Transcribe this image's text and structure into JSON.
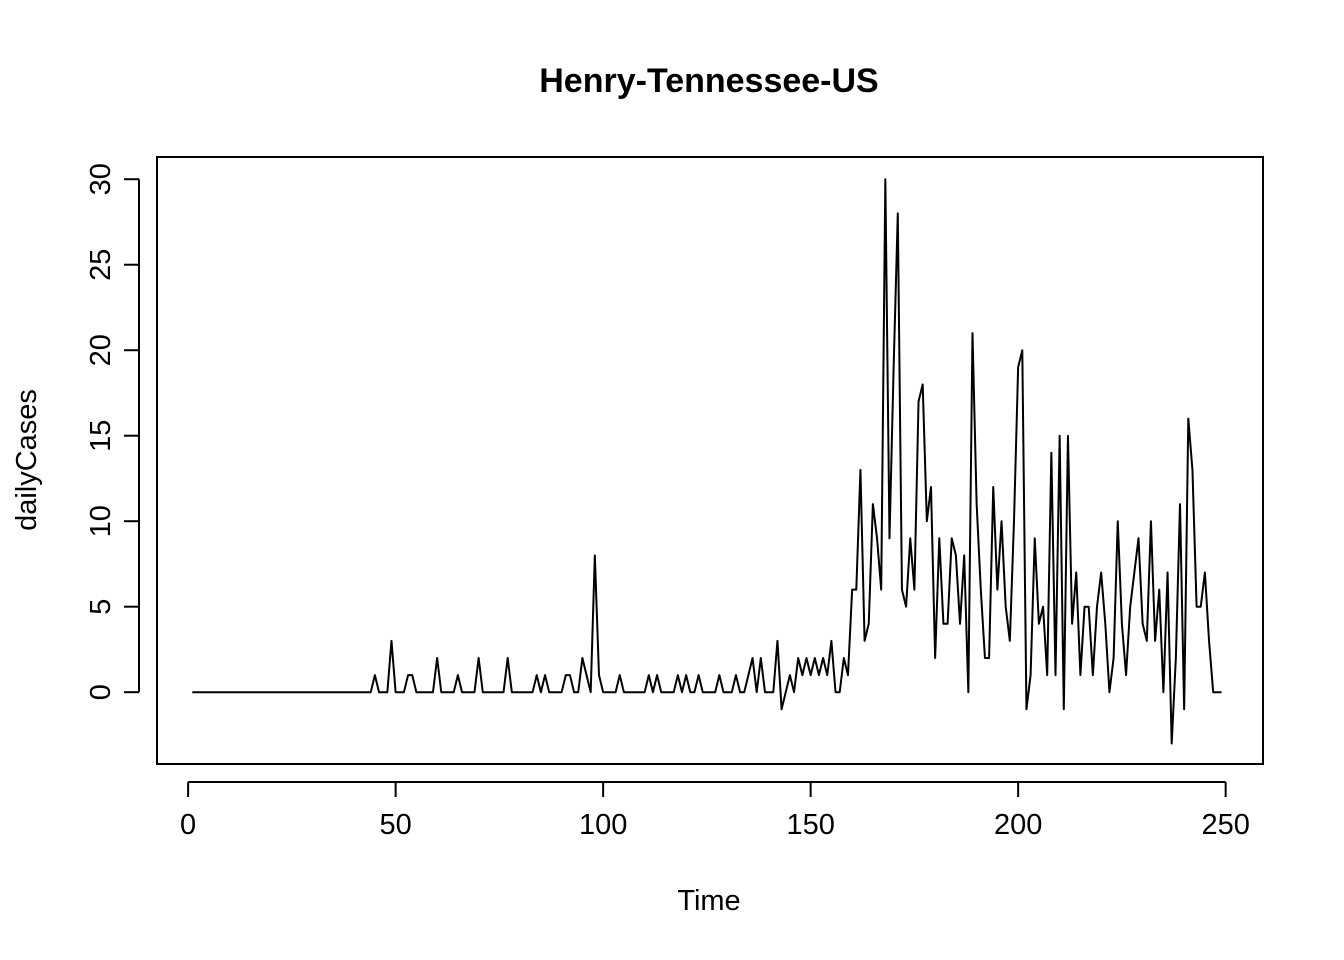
{
  "chart_data": {
    "type": "line",
    "title": "Henry-Tennessee-US",
    "xlabel": "Time",
    "ylabel": "dailyCases",
    "xlim": [
      -7.5,
      259
    ],
    "ylim": [
      -4.2,
      31.3
    ],
    "xticks": [
      0,
      50,
      100,
      150,
      200,
      250
    ],
    "yticks": [
      0,
      5,
      10,
      15,
      20,
      25,
      30
    ],
    "grid": false,
    "legend": "none",
    "series": [
      {
        "values": [
          0,
          0,
          0,
          0,
          0,
          0,
          0,
          0,
          0,
          0,
          0,
          0,
          0,
          0,
          0,
          0,
          0,
          0,
          0,
          0,
          0,
          0,
          0,
          0,
          0,
          0,
          0,
          0,
          0,
          0,
          0,
          0,
          0,
          0,
          0,
          0,
          0,
          0,
          0,
          0,
          0,
          0,
          0,
          0,
          1,
          0,
          0,
          0,
          3,
          0,
          0,
          0,
          1,
          1,
          0,
          0,
          0,
          0,
          0,
          2,
          0,
          0,
          0,
          0,
          1,
          0,
          0,
          0,
          0,
          2,
          0,
          0,
          0,
          0,
          0,
          0,
          2,
          0,
          0,
          0,
          0,
          0,
          0,
          1,
          0,
          1,
          0,
          0,
          0,
          0,
          1,
          1,
          0,
          0,
          2,
          1,
          0,
          8,
          1,
          0,
          0,
          0,
          0,
          1,
          0,
          0,
          0,
          0,
          0,
          0,
          1,
          0,
          1,
          0,
          0,
          0,
          0,
          1,
          0,
          1,
          0,
          0,
          1,
          0,
          0,
          0,
          0,
          1,
          0,
          0,
          0,
          1,
          0,
          0,
          1,
          2,
          0,
          2,
          0,
          0,
          0,
          3,
          -1,
          0,
          1,
          0,
          2,
          1,
          2,
          1,
          2,
          1,
          2,
          1,
          3,
          0,
          0,
          2,
          1,
          6,
          6,
          13,
          3,
          4,
          11,
          9,
          6,
          30,
          9,
          19,
          28,
          6,
          5,
          9,
          6,
          17,
          18,
          10,
          12,
          2,
          9,
          4,
          4,
          9,
          8,
          4,
          8,
          0,
          21,
          11,
          6,
          2,
          2,
          12,
          6,
          10,
          5,
          3,
          10,
          19,
          20,
          -1,
          1,
          9,
          4,
          5,
          1,
          14,
          1,
          15,
          -1,
          15,
          4,
          7,
          1,
          5,
          5,
          1,
          5,
          7,
          4,
          0,
          2,
          10,
          4,
          1,
          5,
          7,
          9,
          4,
          3,
          10,
          3,
          6,
          0,
          7,
          -3,
          2,
          11,
          -1,
          16,
          13,
          5,
          5,
          7,
          3,
          0,
          0,
          0
        ]
      }
    ]
  }
}
